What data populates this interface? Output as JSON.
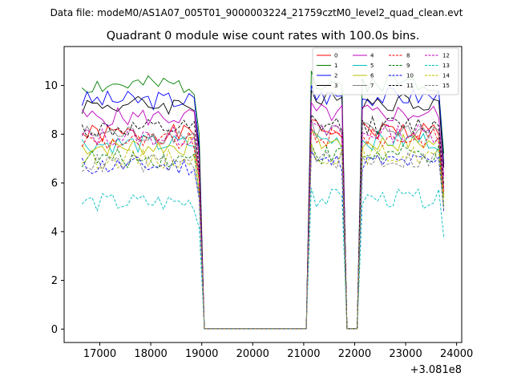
{
  "header": {
    "suptitle": "Data file: modeM0/AS1A07_005T01_9000003224_21759cztM0_level2_quad_clean.evt"
  },
  "chart_data": {
    "type": "line",
    "title": "Quadrant 0 module wise count rates with 100.0s bins.",
    "xlabel": "",
    "ylabel": "",
    "x_offset_label": "+3.081e8",
    "xlim": [
      16300,
      24100
    ],
    "ylim": [
      -0.55,
      11.6
    ],
    "xticks": [
      17000,
      18000,
      19000,
      20000,
      21000,
      22000,
      23000,
      24000
    ],
    "xtick_labels": [
      "17000",
      "18000",
      "19000",
      "20000",
      "21000",
      "22000",
      "23000",
      "24000"
    ],
    "yticks": [
      0,
      2,
      4,
      6,
      8,
      10
    ],
    "ytick_labels": [
      "0",
      "2",
      "4",
      "6",
      "8",
      "10"
    ],
    "grid": false,
    "legend_position": "top-right",
    "segments": [
      {
        "start": 16650,
        "end": 18950,
        "count": 24
      },
      {
        "start": 19050,
        "end": 21050,
        "count": 21
      },
      {
        "start": 21150,
        "end": 21750,
        "count": 7
      },
      {
        "start": 21850,
        "end": 22050,
        "count": 3
      },
      {
        "start": 22150,
        "end": 23750,
        "count": 17
      }
    ],
    "series": [
      {
        "name": "0",
        "color": "#ff0000",
        "dash": "solid",
        "base": 8.0,
        "seed": 1
      },
      {
        "name": "1",
        "color": "#008000",
        "dash": "solid",
        "base": 10.0,
        "seed": 2
      },
      {
        "name": "2",
        "color": "#0000ff",
        "dash": "solid",
        "base": 9.4,
        "seed": 3
      },
      {
        "name": "3",
        "color": "#000000",
        "dash": "solid",
        "base": 9.2,
        "seed": 4
      },
      {
        "name": "4",
        "color": "#c000c0",
        "dash": "solid",
        "base": 8.7,
        "seed": 5
      },
      {
        "name": "5",
        "color": "#00bfbf",
        "dash": "solid",
        "base": 7.6,
        "seed": 6
      },
      {
        "name": "6",
        "color": "#bfbf00",
        "dash": "solid",
        "base": 7.5,
        "seed": 7
      },
      {
        "name": "7",
        "color": "#808080",
        "dash": "solid",
        "base": 8.0,
        "seed": 8
      },
      {
        "name": "8",
        "color": "#ff0000",
        "dash": "dashed",
        "base": 7.7,
        "seed": 9
      },
      {
        "name": "9",
        "color": "#008000",
        "dash": "dashed",
        "base": 7.0,
        "seed": 10
      },
      {
        "name": "10",
        "color": "#0000ff",
        "dash": "dashed",
        "base": 6.7,
        "seed": 11
      },
      {
        "name": "11",
        "color": "#000000",
        "dash": "dashed",
        "base": 8.2,
        "seed": 12
      },
      {
        "name": "12",
        "color": "#c000c0",
        "dash": "dashed",
        "base": 7.9,
        "seed": 13
      },
      {
        "name": "13",
        "color": "#00bfbf",
        "dash": "dashed",
        "base": 5.2,
        "seed": 14
      },
      {
        "name": "14",
        "color": "#bfbf00",
        "dash": "dashed",
        "base": 7.0,
        "seed": 15
      },
      {
        "name": "15",
        "color": "#808080",
        "dash": "dashed",
        "base": 6.8,
        "seed": 16
      }
    ]
  }
}
